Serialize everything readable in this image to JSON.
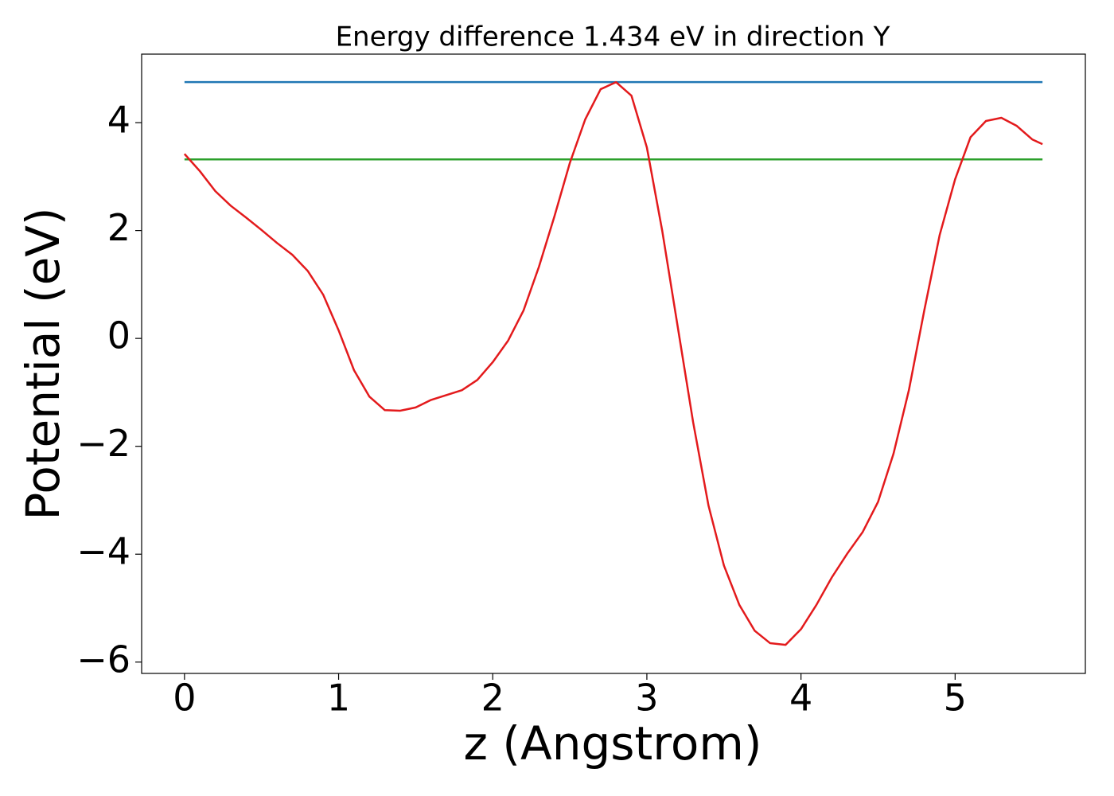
{
  "chart_data": {
    "type": "line",
    "title": "Energy difference 1.434 eV in direction Y",
    "xlabel": "z (Angstrom)",
    "ylabel": "Potential (eV)",
    "xlim": [
      -0.278,
      5.845
    ],
    "ylim": [
      -6.21,
      5.27
    ],
    "xticks": [
      0,
      1,
      2,
      3,
      4,
      5
    ],
    "yticks": [
      {
        "value": -6,
        "label": "−6"
      },
      {
        "value": -4,
        "label": "−4"
      },
      {
        "value": -2,
        "label": "−2"
      },
      0,
      2,
      4
    ],
    "series": [
      {
        "color": "#1f77b4",
        "x": [
          0,
          5.567
        ],
        "values": [
          4.752,
          4.752
        ]
      },
      {
        "color": "#2ca02c",
        "x": [
          0,
          5.567
        ],
        "values": [
          3.318,
          3.318
        ]
      },
      {
        "color": "#e31a1c",
        "x": [
          0,
          0.1,
          0.2,
          0.3,
          0.4,
          0.5,
          0.6,
          0.7,
          0.8,
          0.9,
          1.0,
          1.1,
          1.2,
          1.3,
          1.4,
          1.5,
          1.6,
          1.7,
          1.8,
          1.9,
          2.0,
          2.1,
          2.2,
          2.3,
          2.4,
          2.5,
          2.6,
          2.7,
          2.8,
          2.9,
          3.0,
          3.1,
          3.2,
          3.3,
          3.4,
          3.5,
          3.6,
          3.7,
          3.8,
          3.9,
          4.0,
          4.1,
          4.2,
          4.3,
          4.4,
          4.5,
          4.6,
          4.7,
          4.8,
          4.9,
          5.0,
          5.1,
          5.2,
          5.3,
          5.4,
          5.5,
          5.567
        ],
        "values": [
          3.42,
          3.1,
          2.73,
          2.46,
          2.24,
          2.01,
          1.77,
          1.55,
          1.25,
          0.81,
          0.15,
          -0.59,
          -1.08,
          -1.33,
          -1.34,
          -1.28,
          -1.14,
          -1.05,
          -0.96,
          -0.77,
          -0.44,
          -0.04,
          0.52,
          1.33,
          2.26,
          3.25,
          4.06,
          4.62,
          4.75,
          4.5,
          3.54,
          1.99,
          0.22,
          -1.55,
          -3.1,
          -4.21,
          -4.94,
          -5.42,
          -5.65,
          -5.68,
          -5.39,
          -4.94,
          -4.43,
          -3.99,
          -3.59,
          -3.03,
          -2.14,
          -0.96,
          0.52,
          1.92,
          2.95,
          3.73,
          4.03,
          4.09,
          3.94,
          3.69,
          3.6
        ]
      }
    ]
  }
}
